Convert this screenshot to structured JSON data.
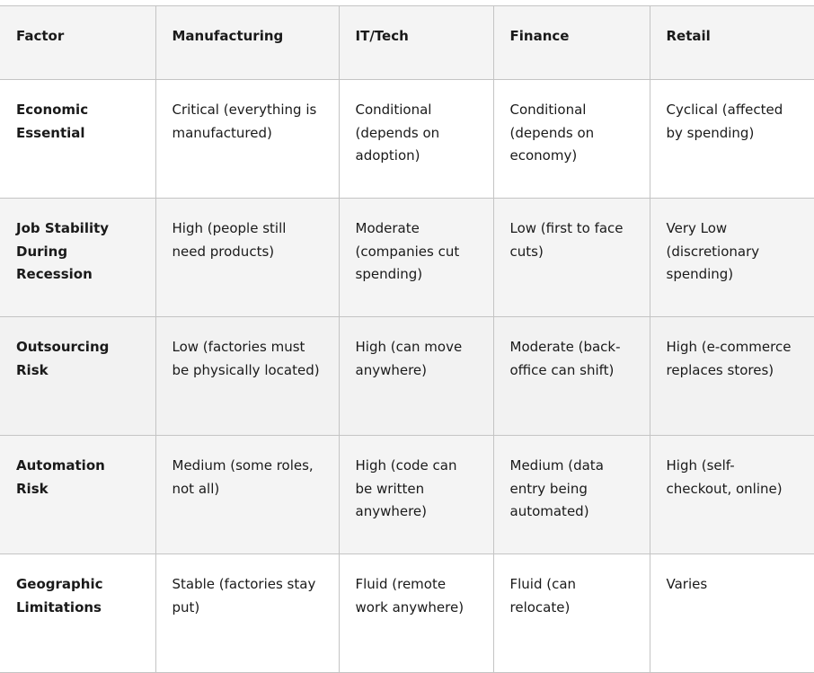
{
  "table": {
    "headers": [
      "Factor",
      "Manufacturing",
      "IT/Tech",
      "Finance",
      "Retail"
    ],
    "rows": [
      [
        "Economic Essential",
        "Critical (everything is manufactured)",
        "Conditional (depends on adoption)",
        "Conditional (depends on economy)",
        "Cyclical (affected by spending)"
      ],
      [
        "Job Stability During Recession",
        "High (people still need products)",
        "Moderate (companies cut spending)",
        "Low (first to face cuts)",
        "Very Low (discretionary spending)"
      ],
      [
        "Outsourcing Risk",
        "Low (factories must be physically located)",
        "High (can move anywhere)",
        "Moderate (back-office can shift)",
        "High (e-commerce replaces stores)"
      ],
      [
        "Automation Risk",
        "Medium (some roles, not all)",
        "High (code can be written anywhere)",
        "Medium (data entry being automated)",
        "High (self-checkout, online)"
      ],
      [
        "Geographic Limitations",
        "Stable (factories stay put)",
        "Fluid (remote work anywhere)",
        "Fluid (can relocate)",
        "Varies"
      ]
    ]
  }
}
